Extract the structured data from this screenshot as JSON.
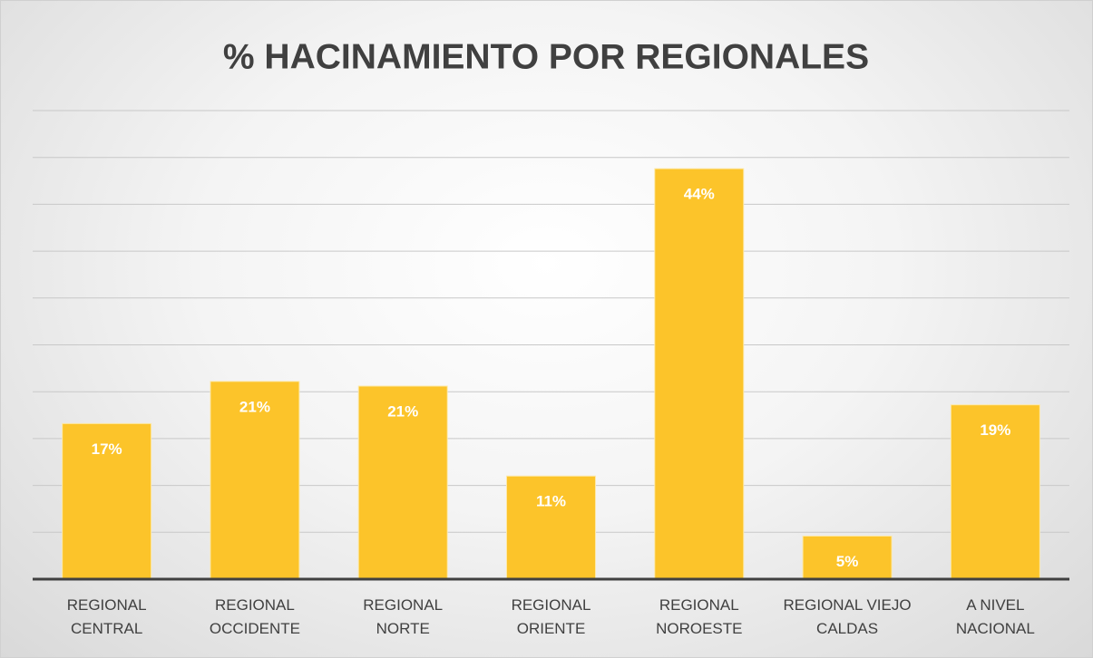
{
  "chart_data": {
    "type": "bar",
    "title": "% HACINAMIENTO POR REGIONALES",
    "categories": [
      "REGIONAL\nCENTRAL",
      "REGIONAL\nOCCIDENTE",
      "REGIONAL\nNORTE",
      "REGIONAL\nORIENTE",
      "REGIONAL\nNOROESTE",
      "REGIONAL VIEJO\nCALDAS",
      "A NIVEL\nNACIONAL"
    ],
    "values": [
      16.6,
      21.1,
      20.6,
      11.0,
      43.8,
      4.6,
      18.6
    ],
    "value_labels": [
      "17%",
      "21%",
      "21%",
      "11%",
      "44%",
      "5%",
      "19%"
    ],
    "color": "#fcc42a",
    "ylim": [
      0,
      50
    ],
    "yticks": [
      0,
      5,
      10,
      15,
      20,
      25,
      30,
      35,
      40,
      45,
      50
    ],
    "grid": true
  }
}
